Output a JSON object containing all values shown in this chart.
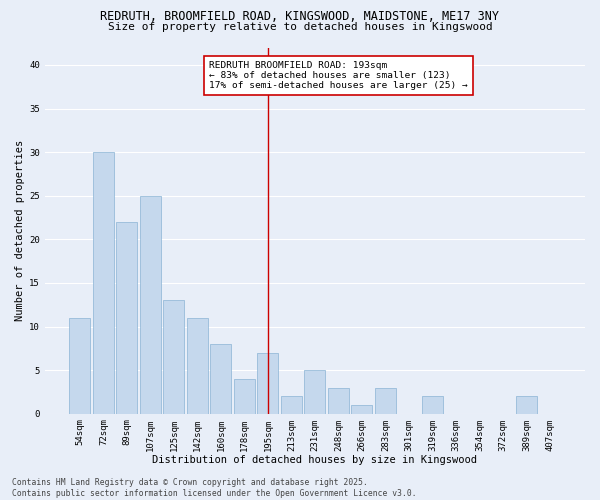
{
  "title_line1": "REDRUTH, BROOMFIELD ROAD, KINGSWOOD, MAIDSTONE, ME17 3NY",
  "title_line2": "Size of property relative to detached houses in Kingswood",
  "xlabel": "Distribution of detached houses by size in Kingswood",
  "ylabel": "Number of detached properties",
  "categories": [
    "54sqm",
    "72sqm",
    "89sqm",
    "107sqm",
    "125sqm",
    "142sqm",
    "160sqm",
    "178sqm",
    "195sqm",
    "213sqm",
    "231sqm",
    "248sqm",
    "266sqm",
    "283sqm",
    "301sqm",
    "319sqm",
    "336sqm",
    "354sqm",
    "372sqm",
    "389sqm",
    "407sqm"
  ],
  "values": [
    11,
    30,
    22,
    25,
    13,
    11,
    8,
    4,
    7,
    2,
    5,
    3,
    1,
    3,
    0,
    2,
    0,
    0,
    0,
    2,
    0
  ],
  "bar_color": "#c5d8ed",
  "bar_edgecolor": "#8ab4d4",
  "marker_index": 8,
  "vline_color": "#cc0000",
  "annotation_text": "REDRUTH BROOMFIELD ROAD: 193sqm\n← 83% of detached houses are smaller (123)\n17% of semi-detached houses are larger (25) →",
  "annotation_box_edgecolor": "#cc0000",
  "annotation_box_facecolor": "#ffffff",
  "ylim": [
    0,
    42
  ],
  "yticks": [
    0,
    5,
    10,
    15,
    20,
    25,
    30,
    35,
    40
  ],
  "background_color": "#e8eef8",
  "grid_color": "#ffffff",
  "footer_line1": "Contains HM Land Registry data © Crown copyright and database right 2025.",
  "footer_line2": "Contains public sector information licensed under the Open Government Licence v3.0.",
  "title_fontsize": 8.5,
  "subtitle_fontsize": 8,
  "axis_label_fontsize": 7.5,
  "tick_fontsize": 6.5,
  "annotation_fontsize": 6.8,
  "footer_fontsize": 5.8
}
